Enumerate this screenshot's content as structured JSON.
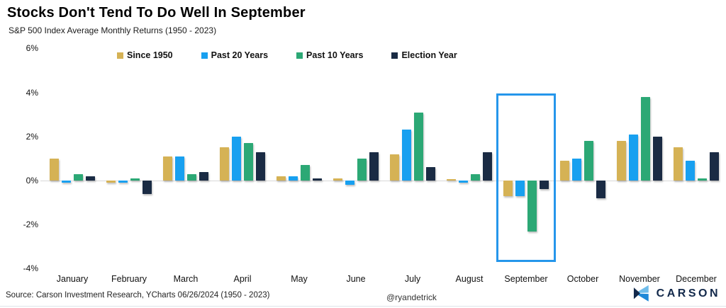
{
  "header": {
    "title": "Stocks Don't Tend To Do Well In September",
    "subtitle": "S&P 500 Index Average Monthly Returns (1950 - 2023)"
  },
  "chart_data": {
    "type": "bar",
    "title": "Stocks Don't Tend To Do Well In September",
    "subtitle": "S&P 500 Index Average Monthly Returns (1950 - 2023)",
    "categories": [
      "January",
      "February",
      "March",
      "April",
      "May",
      "June",
      "July",
      "August",
      "September",
      "October",
      "November",
      "December"
    ],
    "series": [
      {
        "name": "Since 1950",
        "color": "#D5B255",
        "values": [
          1.0,
          -0.1,
          1.1,
          1.5,
          0.2,
          0.1,
          1.2,
          0.05,
          -0.7,
          0.9,
          1.8,
          1.5
        ]
      },
      {
        "name": "Past 20 Years",
        "color": "#18A0F0",
        "values": [
          -0.1,
          -0.1,
          1.1,
          2.0,
          0.2,
          -0.2,
          2.3,
          -0.1,
          -0.7,
          1.0,
          2.1,
          0.9
        ]
      },
      {
        "name": "Past 10 Years",
        "color": "#2CA875",
        "values": [
          0.3,
          0.1,
          0.3,
          1.7,
          0.7,
          1.0,
          3.1,
          0.3,
          -2.3,
          1.8,
          3.8,
          0.1
        ]
      },
      {
        "name": "Election Year",
        "color": "#1A2B44",
        "values": [
          0.2,
          -0.6,
          0.4,
          1.3,
          0.1,
          1.3,
          0.6,
          1.3,
          -0.4,
          -0.8,
          2.0,
          1.3
        ]
      }
    ],
    "ylabel": "",
    "xlabel": "",
    "ylim": [
      -4,
      6
    ],
    "yticks": [
      "6%",
      "4%",
      "2%",
      "0%",
      "-2%",
      "-4%"
    ],
    "grid": false,
    "legend_position": "top",
    "highlight": {
      "month": "September",
      "color": "#2596EB"
    }
  },
  "footer": {
    "source": "Source: Carson Investment Research, YCharts 06/26/2024 (1950 - 2023)",
    "handle": "@ryandetrick",
    "brand_name": "CARSON",
    "brand_colors": {
      "light": "#6FBCEA",
      "mid": "#1E88D8",
      "dark": "#13294B"
    }
  }
}
